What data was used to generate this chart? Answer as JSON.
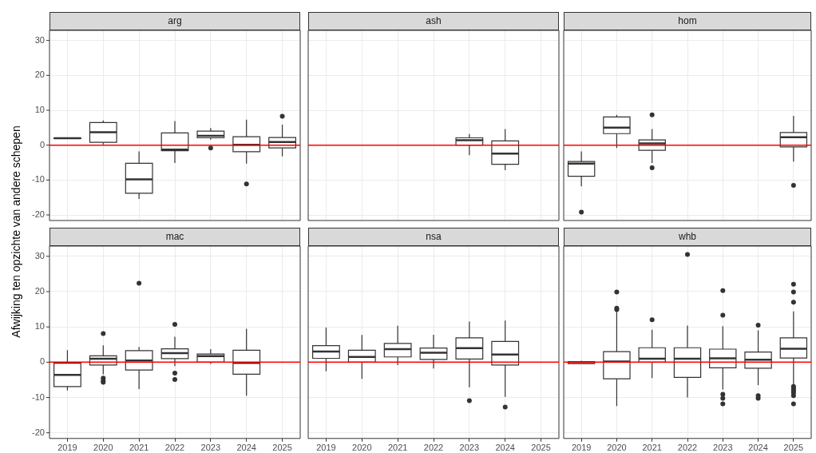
{
  "chart_data": [
    {
      "type": "box",
      "title": "arg",
      "categories": [
        "2019",
        "2020",
        "2021",
        "2022",
        "2023",
        "2024",
        "2025"
      ],
      "ylim": [
        -21.6,
        32.9
      ],
      "yticks": [
        -20,
        -10,
        0,
        10,
        20,
        30
      ],
      "grid": true,
      "tick_labels": "y",
      "color": "#ffffff",
      "ref_lines": [
        {
          "axis": "y",
          "value": 0,
          "color": "#ff0000"
        }
      ],
      "boxes": [
        {
          "low": 1.8,
          "q1": 1.9,
          "median": 2,
          "q3": 2.1,
          "high": 2.2
        },
        {
          "low": 0.2,
          "q1": 0.8,
          "median": 3.7,
          "q3": 6.5,
          "high": 7.1
        },
        {
          "low": -15.4,
          "q1": -13.8,
          "median": -9.8,
          "q3": -5.2,
          "high": -1.8
        },
        {
          "low": -5.1,
          "q1": -1.6,
          "median": -1.3,
          "q3": 3.5,
          "high": 6.9
        },
        {
          "low": 1.6,
          "q1": 2.1,
          "median": 2.7,
          "q3": 4.0,
          "high": 4.9,
          "outliers": [
            -0.8
          ]
        },
        {
          "low": -5.3,
          "q1": -1.9,
          "median": 0.1,
          "q3": 2.4,
          "high": 7.3,
          "outliers": [
            -11.1
          ]
        },
        {
          "low": -3.2,
          "q1": -0.8,
          "median": 0.9,
          "q3": 2.2,
          "high": 5.9,
          "outliers": [
            8.3
          ]
        }
      ]
    },
    {
      "type": "box",
      "title": "ash",
      "categories": [
        "2019",
        "2020",
        "2021",
        "2022",
        "2023",
        "2024",
        "2025"
      ],
      "ylim": [
        -21.6,
        32.9
      ],
      "yticks": [
        -20,
        -10,
        0,
        10,
        20,
        30
      ],
      "grid": true,
      "tick_labels": false,
      "color": "#ffffff",
      "ref_lines": [
        {
          "axis": "y",
          "value": 0,
          "color": "#ff0000"
        }
      ],
      "boxes": [
        null,
        null,
        null,
        null,
        {
          "low": -2.9,
          "q1": 0,
          "median": 1.4,
          "q3": 2.1,
          "high": 3.2
        },
        {
          "low": -7.2,
          "q1": -5.5,
          "median": -2.4,
          "q3": 1.2,
          "high": 4.6
        },
        null
      ]
    },
    {
      "type": "box",
      "title": "hom",
      "categories": [
        "2019",
        "2020",
        "2021",
        "2022",
        "2023",
        "2024",
        "2025"
      ],
      "ylim": [
        -21.6,
        32.9
      ],
      "yticks": [
        -20,
        -10,
        0,
        10,
        20,
        30
      ],
      "grid": true,
      "tick_labels": false,
      "color": "#ffffff",
      "ref_lines": [
        {
          "axis": "y",
          "value": 0,
          "color": "#ff0000"
        }
      ],
      "boxes": [
        {
          "low": -11.8,
          "q1": -8.9,
          "median": -5.3,
          "q3": -4.7,
          "high": -1.8,
          "outliers": [
            -19.2
          ]
        },
        {
          "low": -0.8,
          "q1": 3.3,
          "median": 5.0,
          "q3": 8.1,
          "high": 8.7
        },
        {
          "low": -5.1,
          "q1": -1.5,
          "median": 0.5,
          "q3": 1.5,
          "high": 4.6,
          "outliers": [
            8.7,
            -6.5
          ]
        },
        null,
        null,
        null,
        {
          "low": -4.7,
          "q1": -0.5,
          "median": 2.3,
          "q3": 3.6,
          "high": 8.4,
          "outliers": [
            -11.5
          ]
        }
      ]
    },
    {
      "type": "box",
      "title": "mac",
      "ylabel": "Afwijking ten opzichte van andere schepen",
      "categories": [
        "2019",
        "2020",
        "2021",
        "2022",
        "2023",
        "2024",
        "2025"
      ],
      "ylim": [
        -21.6,
        32.9
      ],
      "yticks": [
        -20,
        -10,
        0,
        10,
        20,
        30
      ],
      "grid": true,
      "color": "#ffffff",
      "ref_lines": [
        {
          "axis": "y",
          "value": 0,
          "color": "#ff0000"
        }
      ],
      "boxes": [
        {
          "low": -8.0,
          "q1": -6.9,
          "median": -3.6,
          "q3": -0.3,
          "high": 3.4
        },
        {
          "low": -3.4,
          "q1": -0.8,
          "median": 1.0,
          "q3": 1.8,
          "high": 4.8,
          "outliers": [
            8.1,
            -4.5,
            -5.3,
            -5.7
          ]
        },
        {
          "low": -7.6,
          "q1": -2.2,
          "median": 0.5,
          "q3": 3.3,
          "high": 4.3,
          "outliers": [
            22.4
          ]
        },
        {
          "low": -1.1,
          "q1": 1.0,
          "median": 2.6,
          "q3": 3.8,
          "high": 7.2,
          "outliers": [
            10.7,
            -3.1,
            -4.9
          ]
        },
        {
          "low": -0.5,
          "q1": 0,
          "median": 1.7,
          "q3": 2.3,
          "high": 3.7
        },
        {
          "low": -9.5,
          "q1": -3.4,
          "median": -0.2,
          "q3": 3.4,
          "high": 9.5
        },
        null
      ]
    },
    {
      "type": "box",
      "title": "nsa",
      "categories": [
        "2019",
        "2020",
        "2021",
        "2022",
        "2023",
        "2024",
        "2025"
      ],
      "ylim": [
        -21.6,
        32.9
      ],
      "yticks": [
        -20,
        -10,
        0,
        10,
        20,
        30
      ],
      "grid": true,
      "tick_labels": "x",
      "color": "#ffffff",
      "ref_lines": [
        {
          "axis": "y",
          "value": 0,
          "color": "#ff0000"
        }
      ],
      "boxes": [
        {
          "low": -2.6,
          "q1": 1.1,
          "median": 3.0,
          "q3": 4.7,
          "high": 9.8
        },
        {
          "low": -4.7,
          "q1": 0,
          "median": 1.5,
          "q3": 3.4,
          "high": 7.7
        },
        {
          "low": -0.8,
          "q1": 1.5,
          "median": 3.7,
          "q3": 5.3,
          "high": 10.3
        },
        {
          "low": -1.8,
          "q1": 0.8,
          "median": 2.7,
          "q3": 4.0,
          "high": 7.8
        },
        {
          "low": -7.1,
          "q1": 0.9,
          "median": 4.0,
          "q3": 6.9,
          "high": 11.5,
          "outliers": [
            -10.9
          ]
        },
        {
          "low": -9.8,
          "q1": -0.8,
          "median": 2.2,
          "q3": 5.9,
          "high": 11.8,
          "outliers": [
            -12.7
          ]
        },
        null
      ]
    },
    {
      "type": "box",
      "title": "whb",
      "categories": [
        "2019",
        "2020",
        "2021",
        "2022",
        "2023",
        "2024",
        "2025"
      ],
      "ylim": [
        -21.6,
        32.9
      ],
      "yticks": [
        -20,
        -10,
        0,
        10,
        20,
        30
      ],
      "grid": true,
      "tick_labels": "x",
      "color": "#ffffff",
      "ref_lines": [
        {
          "axis": "y",
          "value": 0,
          "color": "#ff0000"
        }
      ],
      "boxes": [
        {
          "low": -0.4,
          "q1": -0.4,
          "median": 0,
          "q3": 0.2,
          "high": 0.4
        },
        {
          "low": -12.4,
          "q1": -4.7,
          "median": 0.2,
          "q3": 3.0,
          "high": 14.6,
          "outliers": [
            14.9,
            15.3,
            19.9
          ]
        },
        {
          "low": -4.5,
          "q1": 0,
          "median": 1.0,
          "q3": 4.1,
          "high": 9.2,
          "outliers": [
            12.0
          ]
        },
        {
          "low": -10.0,
          "q1": -4.3,
          "median": 1.0,
          "q3": 4.1,
          "high": 10.4,
          "outliers": [
            30.5
          ]
        },
        {
          "low": -7.7,
          "q1": -1.6,
          "median": 1.1,
          "q3": 3.7,
          "high": 10.2,
          "outliers": [
            20.3,
            13.3,
            -9.1,
            -10.2,
            -11.8
          ]
        },
        {
          "low": -6.5,
          "q1": -1.7,
          "median": 0.7,
          "q3": 2.9,
          "high": 9.0,
          "outliers": [
            10.5,
            -9.5,
            -10.2
          ]
        },
        {
          "low": -6.4,
          "q1": 1.2,
          "median": 3.8,
          "q3": 6.9,
          "high": 14.4,
          "outliers": [
            22.1,
            19.9,
            17.0,
            -6.9,
            -7.3,
            -7.8,
            -8.2,
            -8.7,
            -9.5,
            -11.8
          ]
        }
      ]
    }
  ]
}
